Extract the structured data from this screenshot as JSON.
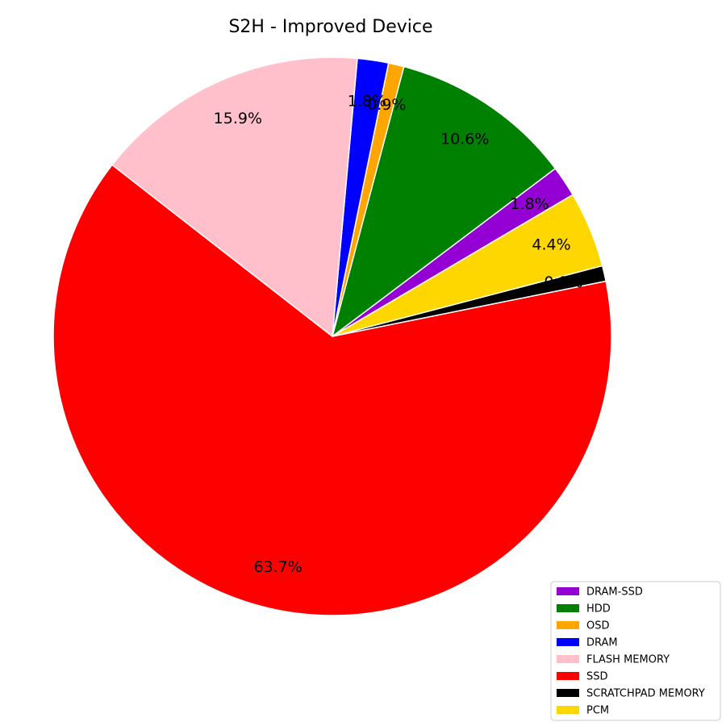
{
  "chart_data": {
    "type": "pie",
    "title": "S2H - Improved Device",
    "slices": [
      {
        "label": "DRAM-SSD",
        "value": 1.8,
        "color": "#9400d3"
      },
      {
        "label": "HDD",
        "value": 10.6,
        "color": "#008000"
      },
      {
        "label": "OSD",
        "value": 0.9,
        "color": "#ffa500"
      },
      {
        "label": "DRAM",
        "value": 1.8,
        "color": "#0000ff"
      },
      {
        "label": "FLASH MEMORY",
        "value": 15.9,
        "color": "#ffc0cb"
      },
      {
        "label": "SSD",
        "value": 63.7,
        "color": "#ff0000"
      },
      {
        "label": "SCRATCHPAD MEMORY",
        "value": 0.9,
        "color": "#000000"
      },
      {
        "label": "PCM",
        "value": 4.4,
        "color": "#ffd700"
      }
    ],
    "value_format": "percent",
    "legend_position": "bottom-right"
  }
}
